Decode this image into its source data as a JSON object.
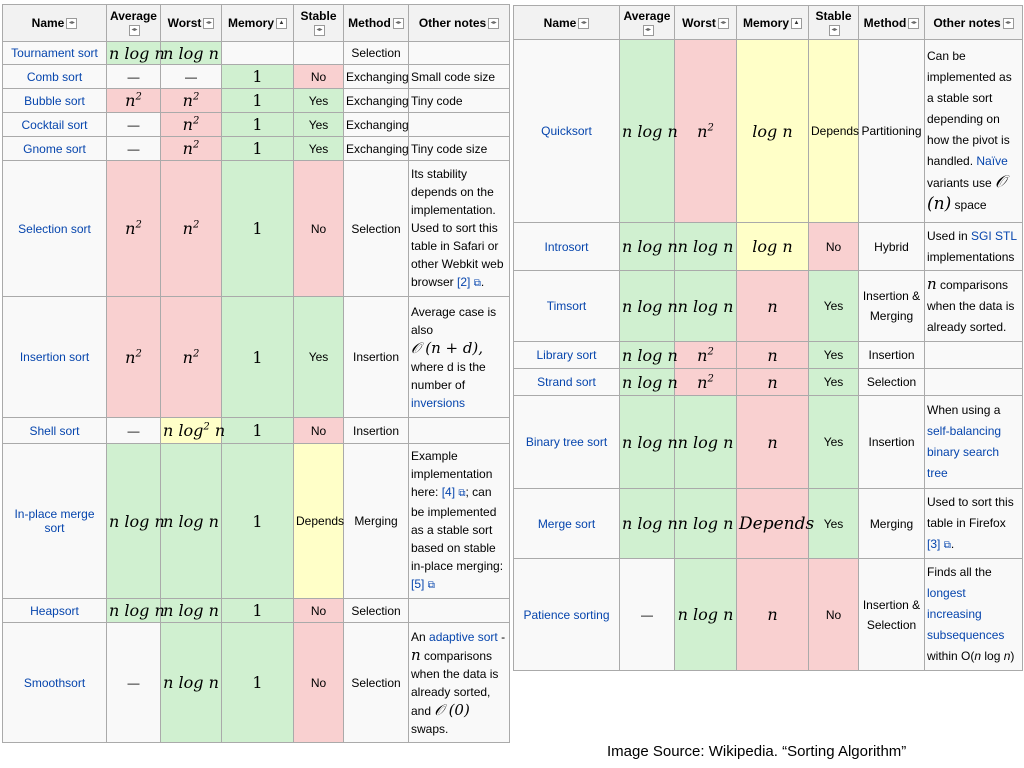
{
  "headers": {
    "name": "Name",
    "average": "Average",
    "worst": "Worst",
    "memory": "Memory",
    "stable": "Stable",
    "method": "Method",
    "notes": "Other notes"
  },
  "icons": {
    "sort": "sort-toggle-icon",
    "sort_active": "sort-ascending-icon",
    "external": "external-link-icon"
  },
  "colors": {
    "good": "#d0f0d0",
    "bad": "#f9d0d0",
    "mixed": "#ffffc8",
    "link": "#0645ad"
  },
  "left": {
    "tournament": {
      "name": "Tournament sort",
      "avg": "n log n",
      "worst": "n log n",
      "mem": "",
      "stable": "",
      "method": "Selection",
      "notes": ""
    },
    "comb": {
      "name": "Comb sort",
      "avg": "—",
      "worst": "—",
      "mem": "1",
      "stable": "No",
      "method": "Exchanging",
      "notes": "Small code size"
    },
    "bubble": {
      "name": "Bubble sort",
      "avg": "n",
      "avg_exp": "2",
      "worst": "n",
      "worst_exp": "2",
      "mem": "1",
      "stable": "Yes",
      "method": "Exchanging",
      "notes": "Tiny code"
    },
    "cocktail": {
      "name": "Cocktail sort",
      "avg": "—",
      "worst": "n",
      "worst_exp": "2",
      "mem": "1",
      "stable": "Yes",
      "method": "Exchanging",
      "notes": ""
    },
    "gnome": {
      "name": "Gnome sort",
      "avg": "—",
      "worst": "n",
      "worst_exp": "2",
      "mem": "1",
      "stable": "Yes",
      "method": "Exchanging",
      "notes": "Tiny code size"
    },
    "selection": {
      "name": "Selection sort",
      "avg": "n",
      "avg_exp": "2",
      "worst": "n",
      "worst_exp": "2",
      "mem": "1",
      "stable": "No",
      "method": "Selection",
      "notes": "Its stability depends on the implementation. Used to sort this table in Safari or other Webkit web browser ",
      "notes_link": "[2]"
    },
    "insertion": {
      "name": "Insertion sort",
      "avg": "n",
      "avg_exp": "2",
      "worst": "n",
      "worst_exp": "2",
      "mem": "1",
      "stable": "Yes",
      "method": "Insertion",
      "notes_a": "Average case is also",
      "notes_math": "𝒪 (n + d),",
      "notes_b": "where d is the number of",
      "notes_link": "inversions"
    },
    "shell": {
      "name": "Shell sort",
      "avg": "—",
      "worst": "n log",
      "worst_exp": "2",
      "worst_tail": " n",
      "mem": "1",
      "stable": "No",
      "method": "Insertion",
      "notes": ""
    },
    "inplace": {
      "name": "In-place merge sort",
      "avg": "n log n",
      "worst": "n log n",
      "mem": "1",
      "stable": "Depends",
      "method": "Merging",
      "notes_a": "Example implementation here: ",
      "notes_link1": "[4]",
      "notes_b": "; can be implemented as a stable sort based on stable in-place merging: ",
      "notes_link2": "[5]"
    },
    "heap": {
      "name": "Heapsort",
      "avg": "n log n",
      "worst": "n log n",
      "mem": "1",
      "stable": "No",
      "method": "Selection",
      "notes": ""
    },
    "smooth": {
      "name": "Smoothsort",
      "avg": "—",
      "worst": "n log n",
      "mem": "1",
      "stable": "No",
      "method": "Selection",
      "notes_a": "An ",
      "notes_link": "adaptive sort",
      "notes_b": " - ",
      "notes_math": "n",
      "notes_c": " comparisons when the data is already sorted, and ",
      "notes_math2": "𝒪 (0)",
      "notes_d": " swaps."
    }
  },
  "right": {
    "quick": {
      "name": "Quicksort",
      "avg": "n log n",
      "worst": "n",
      "worst_exp": "2",
      "mem": "log n",
      "stable": "Depends",
      "method": "Partitioning",
      "notes_a": "Can be implemented as a stable sort depending on how the pivot is handled. ",
      "notes_link": "Naïve",
      "notes_b": " variants use ",
      "notes_math": "𝒪 (n)",
      "notes_c": " space"
    },
    "intro": {
      "name": "Introsort",
      "avg": "n log n",
      "worst": "n log n",
      "mem": "log n",
      "stable": "No",
      "method": "Hybrid",
      "notes_a": "Used in ",
      "notes_link": "SGI STL",
      "notes_b": " implementations"
    },
    "tim": {
      "name": "Timsort",
      "avg": "n log n",
      "worst": "n log n",
      "mem": "n",
      "stable": "Yes",
      "method": "Insertion & Merging",
      "notes_math": "n",
      "notes_a": " comparisons when the data is already sorted."
    },
    "library": {
      "name": "Library sort",
      "avg": "n log n",
      "worst": "n",
      "worst_exp": "2",
      "mem": "n",
      "stable": "Yes",
      "method": "Insertion",
      "notes": ""
    },
    "strand": {
      "name": "Strand sort",
      "avg": "n log n",
      "worst": "n",
      "worst_exp": "2",
      "mem": "n",
      "stable": "Yes",
      "method": "Selection",
      "notes": ""
    },
    "bintree": {
      "name": "Binary tree sort",
      "avg": "n log n",
      "worst": "n log n",
      "mem": "n",
      "stable": "Yes",
      "method": "Insertion",
      "notes_a": "When using a ",
      "notes_link": "self-balancing binary search tree"
    },
    "merge": {
      "name": "Merge sort",
      "avg": "n log n",
      "worst": "n log n",
      "mem": "Depends",
      "stable": "Yes",
      "method": "Merging",
      "notes_a": "Used to sort this table in Firefox ",
      "notes_link": "[3]",
      "notes_b": "."
    },
    "patience": {
      "name": "Patience sorting",
      "avg": "—",
      "worst": "n log n",
      "mem": "n",
      "stable": "No",
      "method": "Insertion & Selection",
      "notes_a": "Finds all the ",
      "notes_link": "longest increasing subsequences",
      "notes_b": " within O(",
      "notes_i": "n",
      "notes_c": " log ",
      "notes_i2": "n",
      "notes_d": ")"
    }
  },
  "caption": "Image Source: Wikipedia.  “Sorting Algorithm”"
}
